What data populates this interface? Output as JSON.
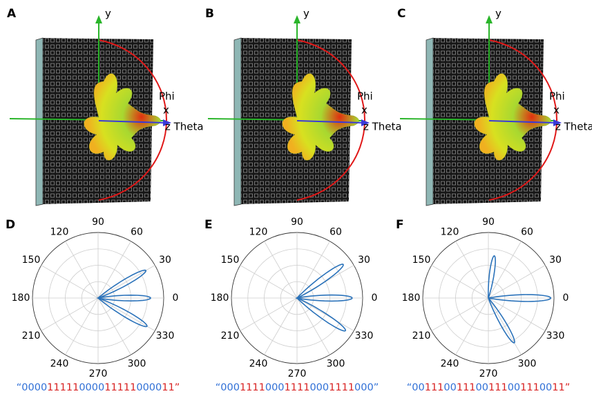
{
  "panels": [
    {
      "label": "A",
      "axes": {
        "y": "y",
        "x": "x",
        "z": "z Theta",
        "phi": "Phi"
      }
    },
    {
      "label": "B",
      "axes": {
        "y": "y",
        "x": "x",
        "z": "z Theta",
        "phi": "Phi"
      }
    },
    {
      "label": "C",
      "axes": {
        "y": "y",
        "x": "x",
        "z": "z Theta",
        "phi": "Phi"
      }
    }
  ],
  "chart_data": [
    {
      "type": "polar",
      "label": "D",
      "thetaticks": [
        0,
        30,
        60,
        90,
        120,
        150,
        180,
        210,
        240,
        270,
        300,
        330
      ],
      "rlim": [
        0,
        1
      ],
      "rticks": [
        0.25,
        0.5,
        0.75,
        1
      ],
      "grid": true,
      "series": [
        {
          "color": "#2a72ba",
          "angles": [
            30,
            0,
            330
          ],
          "values": [
            0.84,
            0.8,
            0.86
          ]
        }
      ],
      "code": [
        {
          "text": "“0000",
          "color": "#2f6fd6"
        },
        {
          "text": "11111",
          "color": "#d82222"
        },
        {
          "text": "0000",
          "color": "#2f6fd6"
        },
        {
          "text": "11111",
          "color": "#d82222"
        },
        {
          "text": "0000",
          "color": "#2f6fd6"
        },
        {
          "text": "11”",
          "color": "#d82222"
        }
      ]
    },
    {
      "type": "polar",
      "label": "E",
      "thetaticks": [
        0,
        30,
        60,
        90,
        120,
        150,
        180,
        210,
        240,
        270,
        300,
        330
      ],
      "rlim": [
        0,
        1
      ],
      "rticks": [
        0.25,
        0.5,
        0.75,
        1
      ],
      "grid": true,
      "series": [
        {
          "color": "#2a72ba",
          "angles": [
            36,
            0,
            326
          ],
          "values": [
            0.87,
            0.84,
            0.89
          ]
        }
      ],
      "code": [
        {
          "text": "“000",
          "color": "#2f6fd6"
        },
        {
          "text": "1111",
          "color": "#d82222"
        },
        {
          "text": "000",
          "color": "#2f6fd6"
        },
        {
          "text": "1111",
          "color": "#d82222"
        },
        {
          "text": "000",
          "color": "#2f6fd6"
        },
        {
          "text": "1111",
          "color": "#d82222"
        },
        {
          "text": "000”",
          "color": "#2f6fd6"
        }
      ]
    },
    {
      "type": "polar",
      "label": "F",
      "thetaticks": [
        0,
        30,
        60,
        90,
        120,
        150,
        180,
        210,
        240,
        270,
        300,
        330
      ],
      "rlim": [
        0,
        1
      ],
      "rticks": [
        0.25,
        0.5,
        0.75,
        1
      ],
      "grid": true,
      "series": [
        {
          "color": "#2a72ba",
          "angles": [
            82,
            0,
            300
          ],
          "values": [
            0.65,
            0.95,
            0.79
          ]
        }
      ],
      "code": [
        {
          "text": "“00",
          "color": "#2f6fd6"
        },
        {
          "text": "111",
          "color": "#d82222"
        },
        {
          "text": "00",
          "color": "#2f6fd6"
        },
        {
          "text": "111",
          "color": "#d82222"
        },
        {
          "text": "00",
          "color": "#2f6fd6"
        },
        {
          "text": "111",
          "color": "#d82222"
        },
        {
          "text": "00",
          "color": "#2f6fd6"
        },
        {
          "text": "111",
          "color": "#d82222"
        },
        {
          "text": "00",
          "color": "#2f6fd6"
        },
        {
          "text": "11”",
          "color": "#d82222"
        }
      ]
    }
  ]
}
